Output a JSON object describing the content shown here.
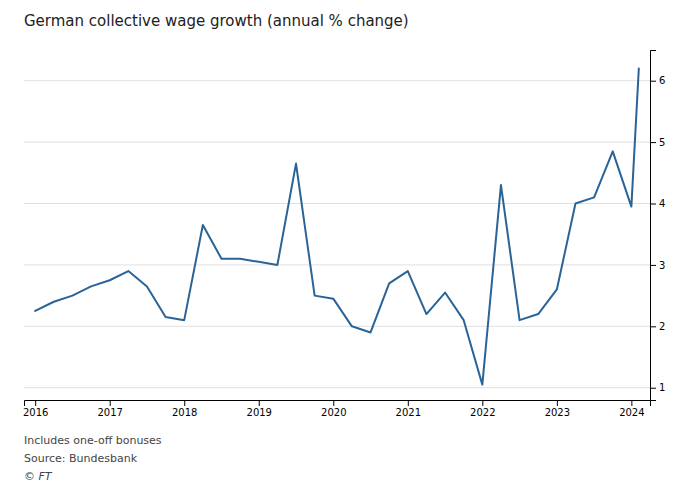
{
  "chart_data": {
    "type": "line",
    "title": "German collective wage growth (annual % change)",
    "annotations": [
      "Includes one-off bonuses",
      "Source: Bundesbank",
      "© FT"
    ],
    "color": "#2a6496",
    "x": [
      2016,
      2016.25,
      2016.5,
      2016.75,
      2017,
      2017.25,
      2017.5,
      2017.75,
      2018,
      2018.25,
      2018.5,
      2018.75,
      2019,
      2019.25,
      2019.5,
      2019.75,
      2020,
      2020.25,
      2020.5,
      2020.75,
      2021,
      2021.25,
      2021.5,
      2021.75,
      2022,
      2022.25,
      2022.5,
      2022.75,
      2023,
      2023.25,
      2023.5,
      2023.75,
      2024,
      2024.1
    ],
    "values": [
      2.25,
      2.4,
      2.5,
      2.65,
      2.75,
      2.9,
      2.65,
      2.15,
      2.1,
      3.65,
      3.1,
      3.1,
      3.05,
      3.0,
      4.65,
      2.5,
      2.45,
      2.0,
      1.9,
      2.7,
      2.9,
      2.2,
      2.55,
      2.1,
      1.05,
      4.3,
      2.1,
      2.2,
      2.6,
      4.0,
      4.1,
      4.85,
      3.95,
      6.2
    ],
    "xlim": [
      2015.85,
      2024.25
    ],
    "xticks": [
      2016,
      2017,
      2018,
      2019,
      2020,
      2021,
      2022,
      2023,
      2024
    ],
    "ylim": [
      0.8,
      6.5
    ],
    "yticks": [
      1,
      2,
      3,
      4,
      5,
      6
    ],
    "grid": true
  }
}
